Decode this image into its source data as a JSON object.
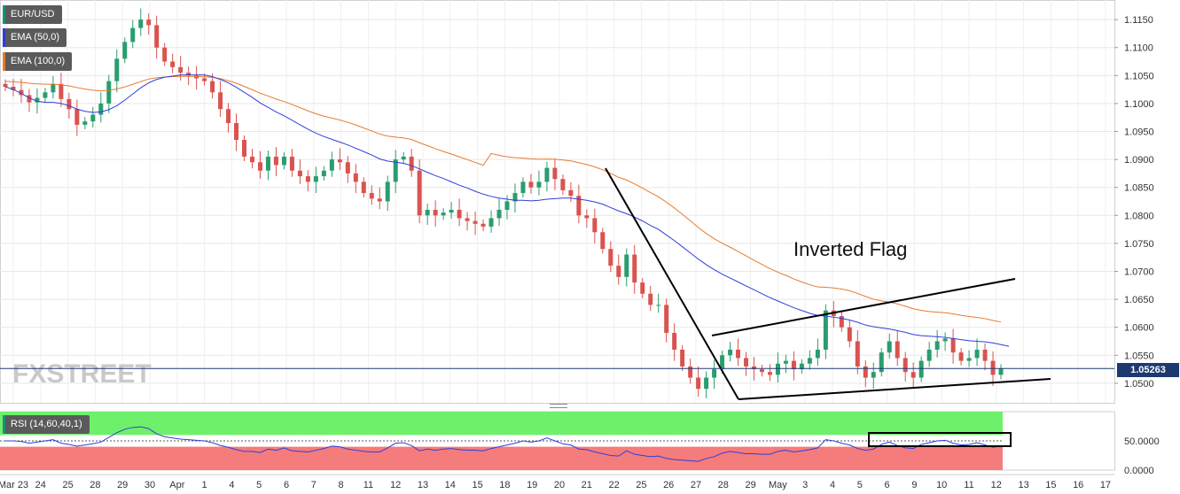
{
  "chart_data": {
    "type": "candlestick",
    "symbol": "EUR/USD",
    "indicators": [
      {
        "name": "EMA (50,0)",
        "color": "#2f3fd8"
      },
      {
        "name": "EMA (100,0)",
        "color": "#e87a2d"
      }
    ],
    "price_axis_labels": [
      "1.1150",
      "1.1100",
      "1.1050",
      "1.1000",
      "1.0950",
      "1.0900",
      "1.0850",
      "1.0800",
      "1.0750",
      "1.0700",
      "1.0650",
      "1.0600",
      "1.0550",
      "1.0500"
    ],
    "price_ylim": [
      1.0465,
      1.1185
    ],
    "current_price": "1.05263",
    "date_labels": [
      "Mar 23",
      "24",
      "25",
      "28",
      "29",
      "30",
      "Apr",
      "1",
      "4",
      "5",
      "6",
      "7",
      "8",
      "11",
      "12",
      "13",
      "14",
      "15",
      "18",
      "19",
      "20",
      "21",
      "22",
      "25",
      "26",
      "27",
      "28",
      "29",
      "May",
      "3",
      "4",
      "5",
      "6",
      "9",
      "10",
      "11",
      "12",
      "13",
      "15",
      "16",
      "17"
    ],
    "annotation": "Inverted Flag",
    "watermark": "FXSTREET",
    "closes": [
      1.103,
      1.1024,
      1.1015,
      1.1002,
      1.101,
      1.102,
      1.1035,
      1.1008,
      1.099,
      1.0962,
      1.0968,
      1.098,
      1.1,
      1.104,
      1.108,
      1.111,
      1.1135,
      1.115,
      1.114,
      1.11,
      1.1075,
      1.1065,
      1.1055,
      1.105,
      1.1045,
      1.104,
      1.102,
      1.099,
      1.0965,
      1.0935,
      1.0905,
      1.0895,
      1.088,
      1.0905,
      1.089,
      1.0905,
      1.088,
      1.087,
      1.086,
      1.087,
      1.088,
      1.09,
      1.0895,
      1.0875,
      1.086,
      1.084,
      1.083,
      1.0825,
      1.086,
      1.09,
      1.0905,
      1.088,
      1.08,
      1.081,
      1.08,
      1.0805,
      1.081,
      1.0795,
      1.079,
      1.0785,
      1.078,
      1.0795,
      1.081,
      1.0825,
      1.084,
      1.086,
      1.085,
      1.086,
      1.0885,
      1.0865,
      1.0845,
      1.0835,
      1.08,
      1.0795,
      1.077,
      1.074,
      1.071,
      1.069,
      1.073,
      1.068,
      1.066,
      1.064,
      1.064,
      1.059,
      1.056,
      1.053,
      1.051,
      1.049,
      1.051,
      1.0525,
      1.055,
      1.056,
      1.0545,
      1.053,
      1.0525,
      1.052,
      1.0515,
      1.0535,
      1.054,
      1.0525,
      1.0535,
      1.0545,
      1.056,
      1.063,
      1.062,
      1.06,
      1.0575,
      1.053,
      1.051,
      1.052,
      1.0555,
      1.0575,
      1.0545,
      1.052,
      1.051,
      1.054,
      1.056,
      1.0575,
      1.058,
      1.0555,
      1.054,
      1.0545,
      1.056,
      1.054,
      1.0515,
      1.0526
    ],
    "ema50_points": [
      [
        1.103
      ],
      [
        1.1025
      ],
      [
        1.1018
      ],
      [
        1.101
      ],
      [
        1.1004
      ],
      [
        1.1002
      ],
      [
        1.1002
      ],
      [
        1.1
      ],
      [
        1.0996
      ],
      [
        1.099
      ],
      [
        1.0986
      ],
      [
        1.0984
      ],
      [
        1.0985
      ],
      [
        1.0989
      ],
      [
        1.0996
      ],
      [
        1.1006
      ],
      [
        1.1017
      ],
      [
        1.1028
      ],
      [
        1.1037
      ],
      [
        1.1043
      ],
      [
        1.1047
      ],
      [
        1.1049
      ],
      [
        1.1051
      ],
      [
        1.1051
      ],
      [
        1.1051
      ],
      [
        1.1051
      ],
      [
        1.1048
      ],
      [
        1.1043
      ],
      [
        1.1037
      ],
      [
        1.1029
      ],
      [
        1.102
      ],
      [
        1.1011
      ],
      [
        1.1001
      ],
      [
        1.0993
      ],
      [
        1.0985
      ],
      [
        1.0978
      ],
      [
        1.097
      ],
      [
        1.0962
      ],
      [
        1.0954
      ],
      [
        1.0947
      ],
      [
        1.0941
      ],
      [
        1.0936
      ],
      [
        1.0931
      ],
      [
        1.0926
      ],
      [
        1.092
      ],
      [
        1.0914
      ],
      [
        1.0908
      ],
      [
        1.0901
      ],
      [
        1.0897
      ],
      [
        1.0895
      ],
      [
        1.0893
      ],
      [
        1.0889
      ],
      [
        1.0883
      ],
      [
        1.0877
      ],
      [
        1.0871
      ],
      [
        1.0866
      ],
      [
        1.086
      ],
      [
        1.0854
      ],
      [
        1.0849
      ],
      [
        1.0843
      ],
      [
        1.0838
      ],
      [
        1.0834
      ],
      [
        1.0831
      ],
      [
        1.0829
      ],
      [
        1.0827
      ],
      [
        1.0827
      ],
      [
        1.0826
      ],
      [
        1.0827
      ],
      [
        1.0829
      ],
      [
        1.083
      ],
      [
        1.0831
      ],
      [
        1.0831
      ],
      [
        1.0829
      ],
      [
        1.0827
      ],
      [
        1.0824
      ],
      [
        1.082
      ],
      [
        1.0814
      ],
      [
        1.0808
      ],
      [
        1.0803
      ],
      [
        1.0797
      ],
      [
        1.079
      ],
      [
        1.0782
      ],
      [
        1.0775
      ],
      [
        1.0765
      ],
      [
        1.0755
      ],
      [
        1.0744
      ],
      [
        1.0733
      ],
      [
        1.0722
      ],
      [
        1.0712
      ],
      [
        1.0703
      ],
      [
        1.0695
      ],
      [
        1.0688
      ],
      [
        1.0681
      ],
      [
        1.0674
      ],
      [
        1.0667
      ],
      [
        1.066
      ],
      [
        1.0653
      ],
      [
        1.0647
      ],
      [
        1.0641
      ],
      [
        1.0635
      ],
      [
        1.063
      ],
      [
        1.0625
      ],
      [
        1.0621
      ],
      [
        1.062
      ],
      [
        1.0618
      ],
      [
        1.0616
      ],
      [
        1.0613
      ],
      [
        1.0609
      ],
      [
        1.0604
      ],
      [
        1.0601
      ],
      [
        1.0599
      ],
      [
        1.0597
      ],
      [
        1.0594
      ],
      [
        1.0591
      ],
      [
        1.0587
      ],
      [
        1.0585
      ],
      [
        1.0584
      ],
      [
        1.0583
      ],
      [
        1.0582
      ],
      [
        1.058
      ],
      [
        1.0578
      ],
      [
        1.0576
      ],
      [
        1.0575
      ],
      [
        1.0574
      ],
      [
        1.0572
      ],
      [
        1.0569
      ],
      [
        1.0566
      ]
    ],
    "rsi": {
      "label": "RSI (14,60,40,1)",
      "axis_labels": [
        "50.0000",
        "0.0000"
      ],
      "ylim": [
        0,
        100
      ],
      "overbought": 60,
      "oversold": 40,
      "values": [
        50,
        50,
        49,
        46,
        48,
        50,
        52,
        46,
        44,
        41,
        43,
        45,
        48,
        56,
        64,
        70,
        73,
        74,
        71,
        62,
        57,
        55,
        53,
        52,
        51,
        50,
        47,
        42,
        39,
        35,
        32,
        32,
        30,
        36,
        34,
        38,
        33,
        32,
        31,
        34,
        37,
        41,
        40,
        36,
        34,
        32,
        31,
        31,
        38,
        46,
        47,
        42,
        33,
        36,
        34,
        36,
        37,
        35,
        34,
        34,
        33,
        37,
        40,
        43,
        46,
        50,
        48,
        50,
        55,
        50,
        45,
        43,
        36,
        35,
        31,
        28,
        25,
        24,
        33,
        27,
        25,
        23,
        24,
        20,
        18,
        17,
        16,
        15,
        20,
        23,
        29,
        32,
        30,
        28,
        28,
        27,
        27,
        32,
        34,
        31,
        33,
        35,
        38,
        52,
        50,
        46,
        43,
        37,
        34,
        36,
        44,
        48,
        42,
        38,
        37,
        44,
        47,
        50,
        51,
        46,
        43,
        44,
        47,
        43,
        39,
        41
      ]
    }
  }
}
